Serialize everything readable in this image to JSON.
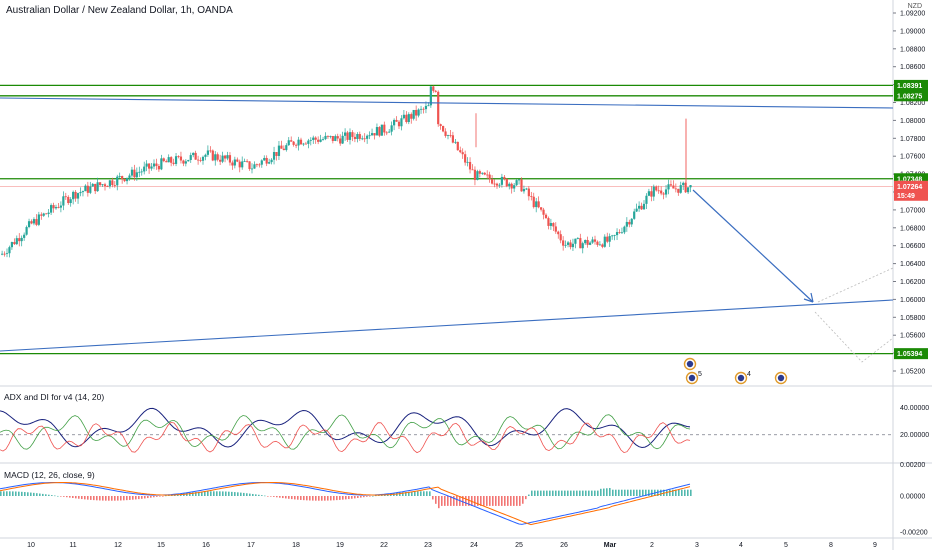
{
  "title": "Australian Dollar / New Zealand Dollar, 1h, OANDA",
  "currency_label": "NZD",
  "colors": {
    "up": "#26a69a",
    "down": "#ef5350",
    "green_line": "#1b8a06",
    "blue_line": "#3b6ec0",
    "adx_line": "#1a237e",
    "di_plus": "#43a047",
    "di_minus": "#ef5350",
    "macd_line": "#2962ff",
    "signal_line": "#ff6d00",
    "current_price_tag": "#ef5350"
  },
  "price_axis": {
    "ticks": [
      "1.09200",
      "1.09000",
      "1.08800",
      "1.08600",
      "1.08400",
      "1.08200",
      "1.08000",
      "1.07800",
      "1.07600",
      "1.07400",
      "1.07200",
      "1.07000",
      "1.06800",
      "1.06600",
      "1.06400",
      "1.06200",
      "1.06000",
      "1.05800",
      "1.05600",
      "1.05400",
      "1.05200"
    ],
    "level_tags": [
      "1.08391",
      "1.08275",
      "1.07348",
      "1.05394"
    ],
    "current_price": "1.07264",
    "countdown": "15:49"
  },
  "time_axis": {
    "labels": [
      "10",
      "11",
      "12",
      "15",
      "16",
      "17",
      "18",
      "19",
      "22",
      "23",
      "24",
      "25",
      "26",
      "Mar",
      "2",
      "3",
      "4",
      "5",
      "8",
      "9"
    ]
  },
  "events": {
    "labels": [
      "5",
      "4"
    ]
  },
  "adx_pane": {
    "title": "ADX and DI for v4 (14, 20)",
    "ticks": [
      "40.00000",
      "20.00000"
    ]
  },
  "macd_pane": {
    "title": "MACD (12, 26, close, 9)",
    "ticks": [
      "0.00000",
      "-0.00200"
    ],
    "partial_tick": "0.00200"
  },
  "chart_data": {
    "type": "line",
    "title": "Australian Dollar / New Zealand Dollar, 1h, OANDA",
    "ylim": [
      1.0515,
      1.0935
    ],
    "x_dates": [
      "10",
      "11",
      "12",
      "15",
      "16",
      "17",
      "18",
      "19",
      "22",
      "23",
      "24",
      "25",
      "26",
      "Mar",
      "2",
      "3",
      "4",
      "5",
      "8",
      "9"
    ],
    "price_path": {
      "name": "",
      "x": [
        "10",
        "11",
        "12",
        "15",
        "16",
        "17",
        "18",
        "19",
        "22",
        "23",
        "24",
        "25",
        "26",
        "Mar",
        "2",
        "3"
      ],
      "values": [
        1.0685,
        1.0718,
        1.0735,
        1.0752,
        1.0762,
        1.0748,
        1.0778,
        1.078,
        1.079,
        1.0815,
        1.0738,
        1.0728,
        1.0662,
        1.0665,
        1.0722,
        1.0726
      ]
    },
    "horizontal_levels": [
      1.08391,
      1.08275,
      1.07348,
      1.05394
    ],
    "current_price": 1.07264,
    "resistance_trendline": {
      "from": [
        "9",
        1.083
      ],
      "to": [
        "9 (next)",
        1.0818
      ]
    },
    "support_trendline": {
      "from": [
        "9",
        1.0568
      ],
      "to": [
        "9 (next)",
        1.0604
      ]
    },
    "projection": {
      "from": [
        "3",
        1.073
      ],
      "to": [
        "8",
        1.0603
      ]
    },
    "adx": {
      "ylim": [
        0,
        50
      ],
      "reference_level": 20,
      "ticks": [
        40,
        20
      ]
    },
    "macd": {
      "params": "12, 26, close, 9",
      "ticks": [
        0.0,
        -0.002
      ]
    }
  }
}
